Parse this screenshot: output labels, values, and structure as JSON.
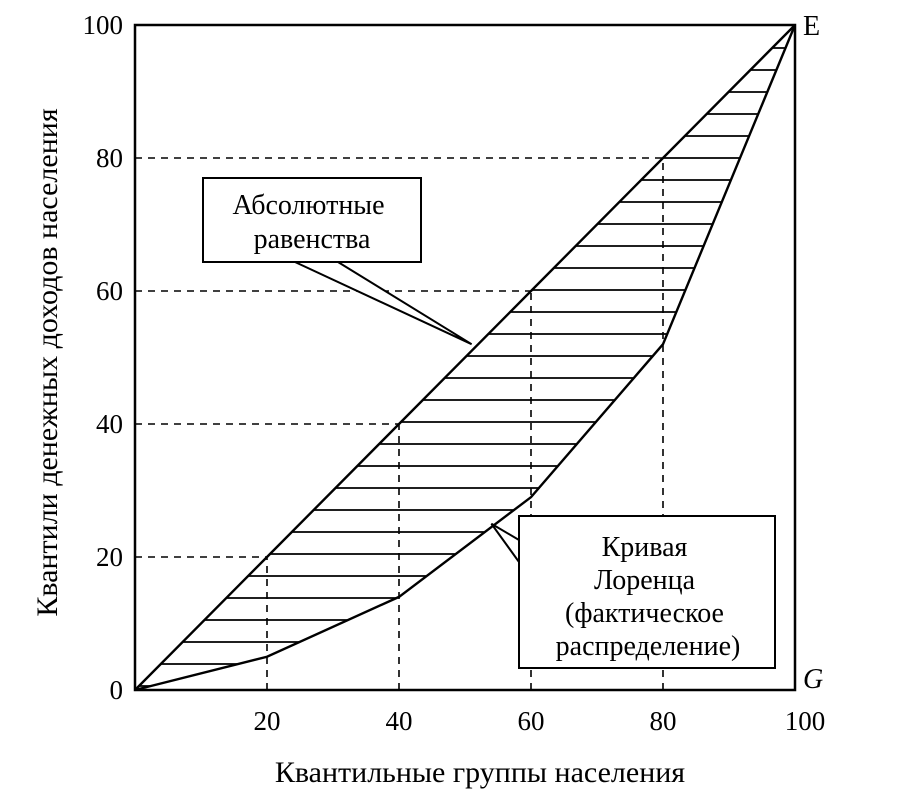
{
  "chart_data": {
    "type": "line",
    "xlabel": "Квантильные группы населения",
    "ylabel": "Квантили денежных доходов населения",
    "xlim": [
      0,
      100
    ],
    "ylim": [
      0,
      100
    ],
    "x_ticks": [
      "20",
      "40",
      "60",
      "80",
      "100"
    ],
    "y_ticks": [
      "0",
      "20",
      "40",
      "60",
      "80",
      "100"
    ],
    "grid": false,
    "series": [
      {
        "name": "Абсолютные равенства",
        "x": [
          0,
          20,
          40,
          60,
          80,
          100
        ],
        "y": [
          0,
          20,
          40,
          60,
          80,
          100
        ]
      },
      {
        "name": "Кривая Лоренца (фактическое распределение)",
        "x": [
          0,
          20,
          40,
          60,
          80,
          100
        ],
        "y": [
          0,
          5,
          14,
          29,
          52,
          100
        ]
      }
    ],
    "guide_points": [
      {
        "x": 20,
        "y": 20
      },
      {
        "x": 40,
        "y": 40
      },
      {
        "x": 60,
        "y": 60
      },
      {
        "x": 80,
        "y": 80
      }
    ],
    "annotations": {
      "equality_label": [
        "Абсолютные",
        "равенства"
      ],
      "lorenz_label": [
        "Кривая",
        "Лоренца",
        "(фактическое",
        "распределение)"
      ],
      "corner_top_right": "E",
      "corner_bottom_right": "G"
    },
    "shaded_region": "hatched area between equality line and Lorenz curve"
  }
}
